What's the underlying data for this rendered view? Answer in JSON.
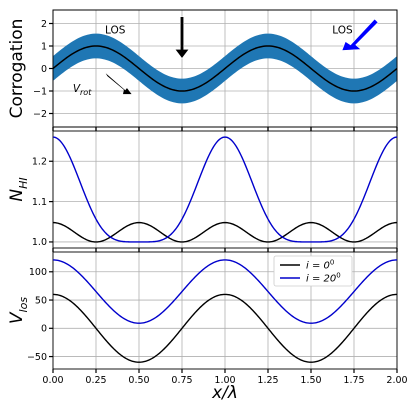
{
  "chart_data": [
    {
      "type": "line",
      "panel": "top",
      "ylabel": "Corrogation",
      "xlim": [
        0,
        2
      ],
      "ylim": [
        -2.6,
        2.6
      ],
      "yticks": [
        -2,
        -1,
        0,
        1,
        2
      ],
      "grid": true,
      "band": {
        "color": "#1f77b4",
        "center_amplitude": 1,
        "half_width": 0.55
      },
      "series": [
        {
          "color": "#000000",
          "amplitude": 1,
          "function": "sin(2*pi*x)"
        }
      ],
      "annotations": [
        {
          "text": "LOS",
          "x": 0.5,
          "y": 1.7,
          "arrow_color": "#000000"
        },
        {
          "text": "LOS",
          "x": 1.67,
          "y": 1.7,
          "arrow_color": "#0000ff"
        },
        {
          "text": "V",
          "subscript": "rot",
          "x": 0.22,
          "y": -0.9,
          "arrow_color": "#000000"
        }
      ]
    },
    {
      "type": "line",
      "panel": "middle",
      "ylabel": "N",
      "ylabel_subscript": "HI",
      "xlim": [
        0,
        2
      ],
      "ylim": [
        0.985,
        1.275
      ],
      "yticks": [
        1.0,
        1.1,
        1.2
      ],
      "ytick_labels": [
        "1.0",
        "1.1",
        "1.2"
      ],
      "grid": true,
      "series": [
        {
          "color": "#000000",
          "x": [
            0,
            0.25,
            0.5,
            0.75,
            1.0,
            1.25,
            1.5,
            1.75,
            2.0
          ],
          "y": [
            1.048,
            1.0,
            1.048,
            1.0,
            1.048,
            1.0,
            1.048,
            1.0,
            1.048
          ]
        },
        {
          "color": "#0000cc",
          "x": [
            0,
            0.25,
            0.5,
            0.75,
            1.0,
            1.25,
            1.5,
            1.75,
            2.0
          ],
          "y": [
            1.26,
            1.055,
            1.0,
            1.055,
            1.26,
            1.055,
            1.0,
            1.055,
            1.26
          ]
        }
      ]
    },
    {
      "type": "line",
      "panel": "bottom",
      "ylabel": "V",
      "ylabel_subscript": "los",
      "xlabel": "x/λ",
      "xlim": [
        0,
        2
      ],
      "ylim": [
        -72,
        135
      ],
      "yticks": [
        -50,
        0,
        50,
        100
      ],
      "xticks": [
        0,
        0.25,
        0.5,
        0.75,
        1.0,
        1.25,
        1.5,
        1.75,
        2.0
      ],
      "xtick_labels": [
        "0.00",
        "0.25",
        "0.50",
        "0.75",
        "1.00",
        "1.25",
        "1.50",
        "1.75",
        "2.00"
      ],
      "grid": true,
      "legend": "top-right",
      "series": [
        {
          "name": "i = 0",
          "name_sup": "0",
          "color": "#000000",
          "mean": 0,
          "amplitude": 60
        },
        {
          "name": "i = 20",
          "name_sup": "0",
          "color": "#0000cc",
          "mean": 65,
          "amplitude": 56
        }
      ]
    }
  ]
}
